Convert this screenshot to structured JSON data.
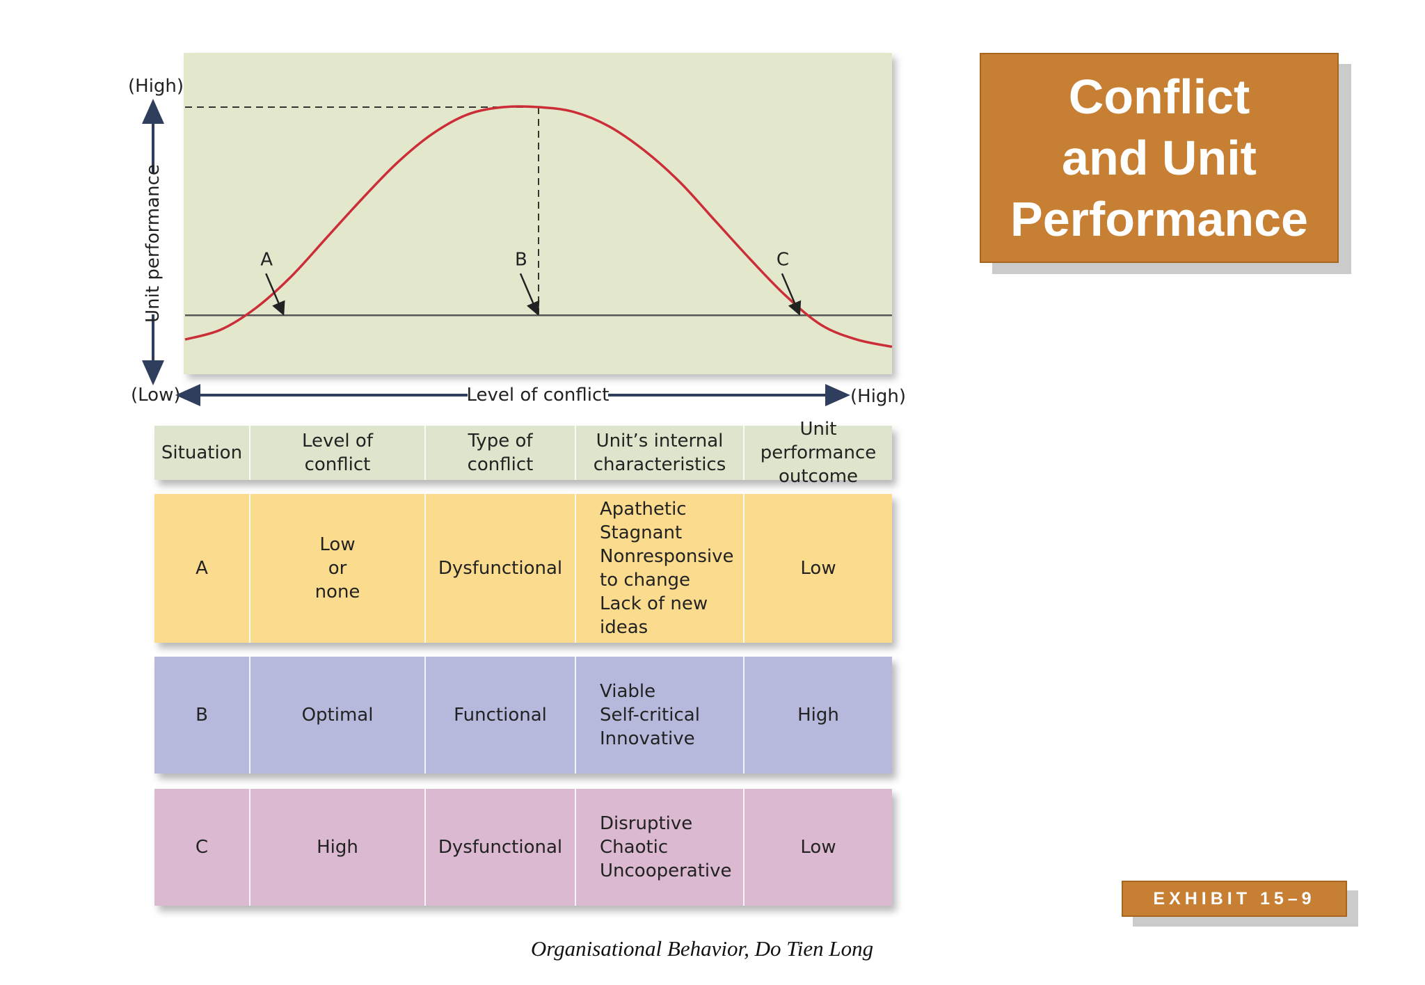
{
  "chart_data": {
    "type": "line",
    "x_axis": {
      "label": "Level of conflict",
      "low_label": "(Low)",
      "high_label": "(High)"
    },
    "y_axis": {
      "label": "Unit performance",
      "low_label": "(Low)",
      "high_label": "(High)"
    },
    "x": [
      0,
      0.05,
      0.1,
      0.15,
      0.2,
      0.25,
      0.3,
      0.35,
      0.4,
      0.45,
      0.5,
      0.55,
      0.6,
      0.65,
      0.7,
      0.75,
      0.8,
      0.85,
      0.9,
      0.95,
      1.0
    ],
    "series": [
      {
        "values": [
          0.04,
          0.08,
          0.17,
          0.3,
          0.46,
          0.62,
          0.77,
          0.89,
          0.97,
          1.0,
          1.0,
          0.98,
          0.92,
          0.82,
          0.69,
          0.53,
          0.37,
          0.22,
          0.1,
          0.04,
          0.01
        ]
      }
    ],
    "reference_level": 0.14,
    "points": [
      {
        "label": "A",
        "x": 0.14,
        "y": 0.14
      },
      {
        "label": "B",
        "x": 0.5,
        "y": 0.14
      },
      {
        "label": "C",
        "x": 0.87,
        "y": 0.14
      }
    ],
    "peak": {
      "x": 0.5,
      "y": 1.0
    },
    "colors": {
      "plot_bg": "#e3e8cd",
      "curve": "#cc2e38",
      "axis": "#2e3e5c"
    }
  },
  "table": {
    "headers": [
      "Situation",
      "Level of\nconflict",
      "Type of\nconflict",
      "Unit’s internal\ncharacteristics",
      "Unit performance\noutcome"
    ],
    "rows": [
      {
        "situation": "A",
        "level": "Low\nor\nnone",
        "type": "Dysfunctional",
        "characteristics": "Apathetic\nStagnant\nNonresponsive\n    to change\nLack of new\n    ideas",
        "outcome": "Low"
      },
      {
        "situation": "B",
        "level": "Optimal",
        "type": "Functional",
        "characteristics": "Viable\nSelf-critical\nInnovative",
        "outcome": "High"
      },
      {
        "situation": "C",
        "level": "High",
        "type": "Dysfunctional",
        "characteristics": "Disruptive\nChaotic\nUncooperative",
        "outcome": "Low"
      }
    ]
  },
  "title": "Conflict\nand Unit\nPerformance",
  "exhibit": "EXHIBIT 15–9",
  "footer": "Organisational Behavior, Do Tien Long",
  "colors": {
    "title_bg": "#c77f33",
    "row_header": "#dde5cc",
    "row_a": "#fbdc8e",
    "row_b": "#b7b9dc",
    "row_c": "#dbb9d1"
  }
}
